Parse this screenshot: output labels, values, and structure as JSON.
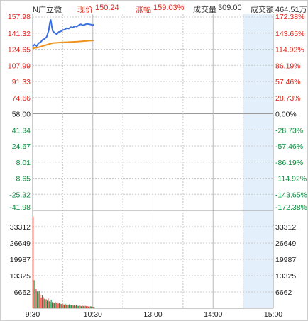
{
  "header": {
    "stock_name": "N广立微",
    "price_label": "现价",
    "price_value": "150.24",
    "change_label": "涨幅",
    "change_value": "159.03%",
    "volume_label": "成交量",
    "volume_value": "309.00",
    "amount_label": "成交额",
    "amount_value": "464.51万"
  },
  "colors": {
    "up": "#e0251b",
    "down": "#0a8a3a",
    "neutral": "#222222",
    "price_line": "#3b6fe0",
    "avg_line": "#f0921e",
    "grid": "#c8c8c8",
    "future_shade": "#e3f0fb"
  },
  "chart_data": {
    "type": "line",
    "price_axis": {
      "left_ticks": [
        "157.98",
        "141.32",
        "124.65",
        "107.99",
        "91.33",
        "74.66",
        "58.00",
        "41.34",
        "24.67",
        "8.01",
        "-8.65",
        "-25.32",
        "-41.98"
      ],
      "right_ticks": [
        "172.38%",
        "143.65%",
        "114.92%",
        "86.19%",
        "57.46%",
        "28.73%",
        "0.00%",
        "-28.73%",
        "-57.46%",
        "-86.19%",
        "-114.92%",
        "-143.65%",
        "-172.38%"
      ],
      "range": [
        -41.98,
        157.98
      ],
      "prev_close": 58.0
    },
    "volume_axis": {
      "ticks": [
        "33312",
        "26649",
        "19987",
        "13325",
        "6662"
      ],
      "range": [
        0,
        39974
      ]
    },
    "time_labels": [
      "9:30",
      "10:30",
      "13:00",
      "14:00",
      "15:00"
    ],
    "session_minutes": 240,
    "price_series": {
      "name": "price",
      "points": [
        [
          0,
          127.5
        ],
        [
          2,
          129.5
        ],
        [
          4,
          128.0
        ],
        [
          6,
          131.0
        ],
        [
          8,
          132.0
        ],
        [
          10,
          134.5
        ],
        [
          12,
          135.5
        ],
        [
          14,
          137.5
        ],
        [
          16,
          144.0
        ],
        [
          17,
          151.0
        ],
        [
          18,
          155.5
        ],
        [
          19,
          149.0
        ],
        [
          20,
          143.5
        ],
        [
          22,
          141.5
        ],
        [
          24,
          140.0
        ],
        [
          26,
          142.5
        ],
        [
          28,
          143.0
        ],
        [
          30,
          144.5
        ],
        [
          32,
          145.0
        ],
        [
          34,
          146.5
        ],
        [
          36,
          146.0
        ],
        [
          38,
          147.5
        ],
        [
          40,
          147.0
        ],
        [
          42,
          148.5
        ],
        [
          44,
          148.0
        ],
        [
          46,
          149.5
        ],
        [
          48,
          150.5
        ],
        [
          50,
          149.5
        ],
        [
          52,
          150.0
        ],
        [
          54,
          151.0
        ],
        [
          56,
          150.5
        ],
        [
          58,
          150.2
        ],
        [
          60,
          149.5
        ],
        [
          61,
          150.24
        ]
      ]
    },
    "avg_series": {
      "name": "average",
      "points": [
        [
          0,
          125.5
        ],
        [
          5,
          126.5
        ],
        [
          10,
          128.0
        ],
        [
          15,
          129.5
        ],
        [
          20,
          131.0
        ],
        [
          25,
          131.5
        ],
        [
          30,
          131.8
        ],
        [
          35,
          132.0
        ],
        [
          40,
          132.3
        ],
        [
          45,
          132.6
        ],
        [
          50,
          133.0
        ],
        [
          55,
          133.4
        ],
        [
          61,
          133.8
        ]
      ]
    },
    "volume_series": {
      "name": "volume",
      "values": [
        37500,
        11500,
        9200,
        7800,
        6900,
        6500,
        7000,
        5600,
        4300,
        5200,
        4600,
        3900,
        3200,
        3700,
        3100,
        4000,
        2800,
        2600,
        3400,
        2500,
        2400,
        2200,
        2700,
        2100,
        2000,
        1900,
        2300,
        1800,
        1700,
        2000,
        1600,
        1500,
        1800,
        1500,
        1400,
        1300,
        1600,
        1300,
        1200,
        1400,
        1100,
        1200,
        1000,
        1300,
        1100,
        900,
        1200,
        1000,
        800,
        1100,
        900,
        700,
        1000,
        800,
        900,
        700,
        600,
        800,
        700,
        600,
        500,
        500
      ],
      "up": [
        1,
        0,
        1,
        1,
        0,
        1,
        0,
        1,
        1,
        0,
        1,
        0,
        1,
        1,
        0,
        1,
        1,
        0,
        0,
        1,
        1,
        0,
        1,
        0,
        1,
        1,
        0,
        0,
        1,
        1,
        0,
        1,
        0,
        1,
        1,
        0,
        1,
        0,
        0,
        1,
        1,
        0,
        1,
        1,
        0,
        0,
        1,
        1,
        0,
        1,
        1,
        0,
        1,
        0,
        1,
        1,
        0,
        1,
        0,
        1,
        1,
        0
      ]
    }
  }
}
